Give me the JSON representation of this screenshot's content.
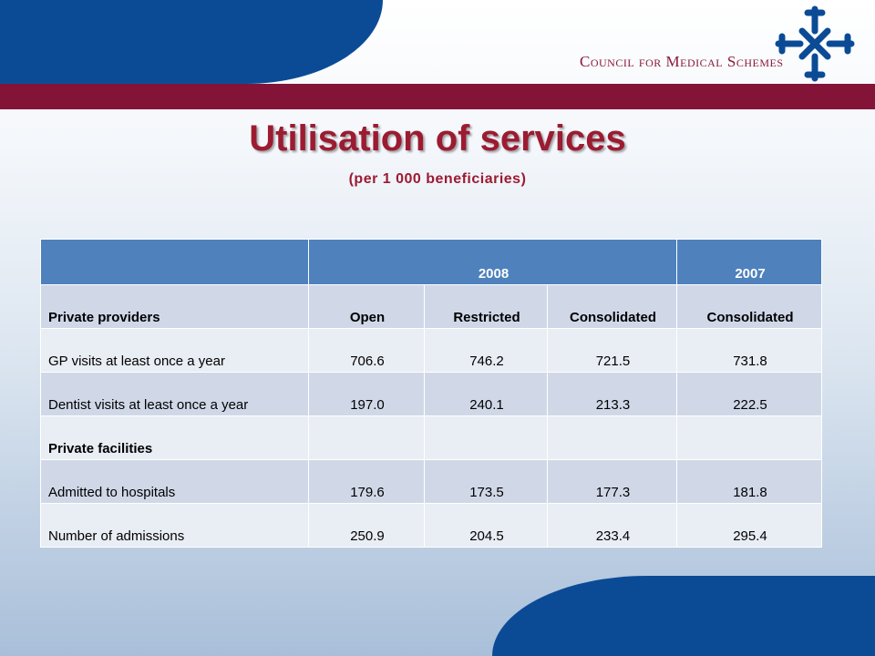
{
  "header": {
    "org_name": "Council for Medical Schemes",
    "logo_icon": "cms-cross-logo-icon",
    "colors": {
      "blue": "#0b4b96",
      "maroon": "#841437",
      "title": "#9c1b31",
      "table_header": "#4f81bd"
    }
  },
  "slide": {
    "title": "Utilisation of services",
    "subtitle": "(per 1 000 beneficiaries)"
  },
  "table": {
    "year_header": [
      "",
      "2008",
      "2007"
    ],
    "columns": [
      "Private providers",
      "Open",
      "Restricted",
      "Consolidated",
      "Consolidated"
    ],
    "rows": [
      [
        "GP  visits at least once a year",
        "706.6",
        "746.2",
        "721.5",
        "731.8"
      ],
      [
        "Dentist visits at least once a year",
        "197.0",
        "240.1",
        "213.3",
        "222.5"
      ],
      [
        "Private facilities",
        "",
        "",
        "",
        ""
      ],
      [
        "Admitted to hospitals",
        "179.6",
        "173.5",
        "177.3",
        "181.8"
      ],
      [
        "Number of admissions",
        "250.9",
        "204.5",
        "233.4",
        "295.4"
      ]
    ]
  }
}
